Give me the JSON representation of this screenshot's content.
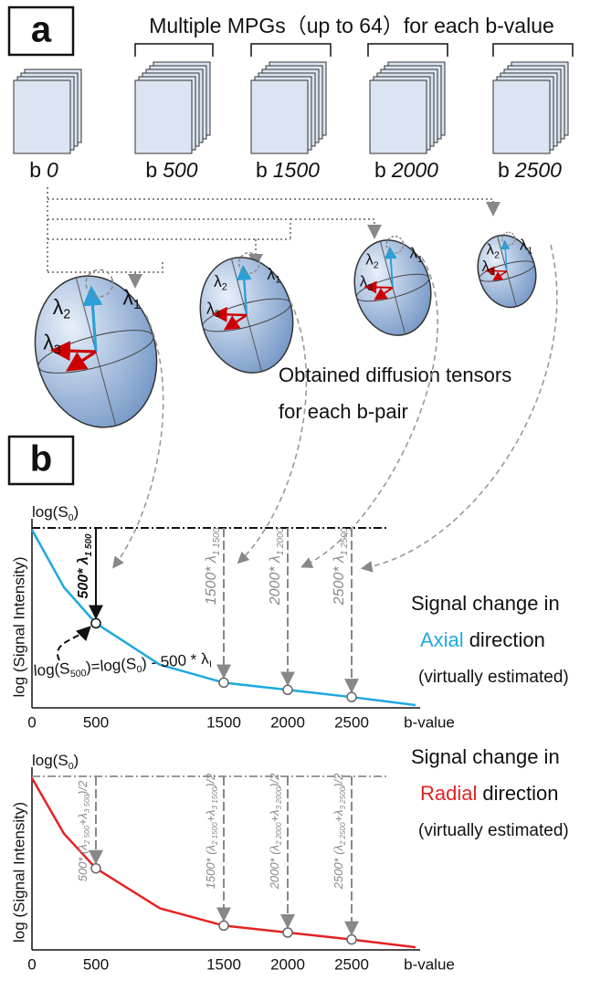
{
  "panel_a": {
    "label": "a",
    "title": "Multiple MPGs（up  to  64）for each b-value",
    "stacks": [
      {
        "prefix": "b",
        "value": "0"
      },
      {
        "prefix": "b",
        "value": "500"
      },
      {
        "prefix": "b",
        "value": "1500"
      },
      {
        "prefix": "b",
        "value": "2000"
      },
      {
        "prefix": "b",
        "value": "2500"
      }
    ],
    "lambda": {
      "symbol": "λ",
      "subscripts": [
        "1",
        "2",
        "3"
      ]
    },
    "caption": [
      "Obtained diffusion tensors",
      "for each b-pair"
    ]
  },
  "panel_b": {
    "label": "b",
    "axial": {
      "s0": [
        "log(S",
        "0",
        ")"
      ],
      "y_label": "log (Signal Intensity)",
      "x_ticks": [
        0,
        500,
        1500,
        2000,
        2500
      ],
      "x_label": "b-value",
      "annotations": [
        [
          "500* λ",
          "1 500"
        ],
        [
          "1500* λ",
          "1 1500"
        ],
        [
          "2000* λ",
          "1 2000"
        ],
        [
          "2500* λ",
          "1 2500"
        ]
      ],
      "equation": [
        "log(S",
        "500",
        ")=log(S",
        "0",
        ") - 500 * λ",
        "I"
      ],
      "legend": [
        "Signal change in",
        "Axial",
        "direction",
        "(virtually estimated)"
      ]
    },
    "radial": {
      "s0": [
        "log(S",
        "0",
        ")"
      ],
      "y_label": "log (Signal Intensity)",
      "x_ticks": [
        0,
        500,
        1500,
        2000,
        2500
      ],
      "x_label": "b-value",
      "annotations": [
        [
          "500* (λ",
          "2 500",
          "+λ",
          "3 500",
          ")/2"
        ],
        [
          "1500* (λ",
          "2 1500",
          "+λ",
          "3 1500",
          ")/2"
        ],
        [
          "2000* (λ",
          "2 2000",
          "+λ",
          "3 2000",
          ")/2"
        ],
        [
          "2500* (λ",
          "2 2500",
          "+λ",
          "3 2500",
          ")/2"
        ]
      ],
      "legend": [
        "Signal change in",
        "Radial",
        "direction",
        "(virtually estimated)"
      ]
    }
  }
}
